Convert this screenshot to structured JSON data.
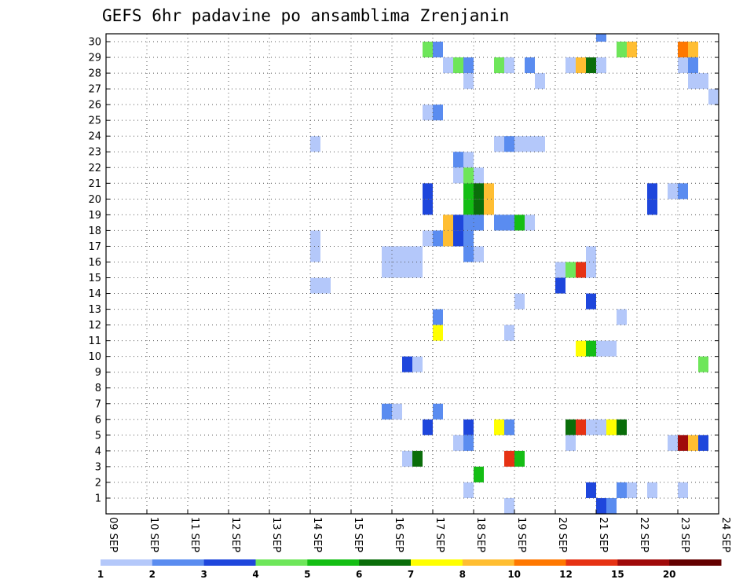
{
  "chart_data": {
    "type": "heatmap",
    "title": "GEFS 6hr padavine po ansamblima Zrenjanin",
    "xlabel": "",
    "ylabel": "",
    "x_tick_labels": [
      "09 SEP",
      "10 SEP",
      "11 SEP",
      "12 SEP",
      "13 SEP",
      "14 SEP",
      "15 SEP",
      "16 SEP",
      "17 SEP",
      "18 SEP",
      "19 SEP",
      "20 SEP",
      "21 SEP",
      "22 SEP",
      "23 SEP",
      "24 SEP"
    ],
    "y_tick_labels": [
      "1",
      "2",
      "3",
      "4",
      "5",
      "6",
      "7",
      "8",
      "9",
      "10",
      "11",
      "12",
      "13",
      "14",
      "15",
      "16",
      "17",
      "18",
      "19",
      "20",
      "21",
      "22",
      "23",
      "24",
      "25",
      "26",
      "27",
      "28",
      "29",
      "30"
    ],
    "xlim_days": [
      0,
      15
    ],
    "ylim_members": [
      0,
      30
    ],
    "steps_per_day": 4,
    "grid": true,
    "legend": {
      "placement": "bottom",
      "colors": [
        "#b4c8fa",
        "#5a8cf0",
        "#1e46dc",
        "#6ee65a",
        "#14be14",
        "#0a6e0a",
        "#ffff00",
        "#ffbe32",
        "#ff7800",
        "#e63214",
        "#a00a0a",
        "#640000"
      ],
      "labels": [
        "1",
        "2",
        "3",
        "4",
        "5",
        "6",
        "7",
        "8",
        "10",
        "12",
        "15",
        "20"
      ]
    },
    "cells": [
      {
        "member": 30,
        "day": 12.0,
        "level": 1
      },
      {
        "member": 29,
        "day": 7.75,
        "level": 3
      },
      {
        "member": 29,
        "day": 8.0,
        "level": 1
      },
      {
        "member": 29,
        "day": 12.5,
        "level": 3
      },
      {
        "member": 29,
        "day": 12.75,
        "level": 7
      },
      {
        "member": 29,
        "day": 14.0,
        "level": 8
      },
      {
        "member": 29,
        "day": 14.25,
        "level": 7
      },
      {
        "member": 28,
        "day": 8.25,
        "level": 0
      },
      {
        "member": 28,
        "day": 8.5,
        "level": 3
      },
      {
        "member": 28,
        "day": 8.75,
        "level": 1
      },
      {
        "member": 28,
        "day": 9.5,
        "level": 3
      },
      {
        "member": 28,
        "day": 9.75,
        "level": 0
      },
      {
        "member": 28,
        "day": 10.25,
        "level": 1
      },
      {
        "member": 28,
        "day": 11.25,
        "level": 0
      },
      {
        "member": 28,
        "day": 11.5,
        "level": 7
      },
      {
        "member": 28,
        "day": 11.75,
        "level": 5
      },
      {
        "member": 28,
        "day": 12.0,
        "level": 0
      },
      {
        "member": 28,
        "day": 14.0,
        "level": 0
      },
      {
        "member": 28,
        "day": 14.25,
        "level": 1
      },
      {
        "member": 27,
        "day": 8.75,
        "level": 0
      },
      {
        "member": 27,
        "day": 10.5,
        "level": 0
      },
      {
        "member": 27,
        "day": 14.25,
        "level": 0
      },
      {
        "member": 27,
        "day": 14.5,
        "level": 0
      },
      {
        "member": 26,
        "day": 14.75,
        "level": 0
      },
      {
        "member": 25,
        "day": 7.75,
        "level": 0
      },
      {
        "member": 25,
        "day": 8.0,
        "level": 1
      },
      {
        "member": 23,
        "day": 5.0,
        "level": 0
      },
      {
        "member": 23,
        "day": 9.5,
        "level": 0
      },
      {
        "member": 23,
        "day": 9.75,
        "level": 1
      },
      {
        "member": 23,
        "day": 10.0,
        "level": 0
      },
      {
        "member": 23,
        "day": 10.25,
        "level": 0
      },
      {
        "member": 23,
        "day": 10.5,
        "level": 0
      },
      {
        "member": 22,
        "day": 8.5,
        "level": 1
      },
      {
        "member": 22,
        "day": 8.75,
        "level": 0
      },
      {
        "member": 21,
        "day": 8.5,
        "level": 0
      },
      {
        "member": 21,
        "day": 8.75,
        "level": 3
      },
      {
        "member": 21,
        "day": 9.0,
        "level": 0
      },
      {
        "member": 20,
        "day": 7.75,
        "level": 2
      },
      {
        "member": 20,
        "day": 8.75,
        "level": 4
      },
      {
        "member": 20,
        "day": 9.0,
        "level": 5
      },
      {
        "member": 20,
        "day": 9.25,
        "level": 7
      },
      {
        "member": 20,
        "day": 13.25,
        "level": 2
      },
      {
        "member": 20,
        "day": 13.75,
        "level": 0
      },
      {
        "member": 20,
        "day": 14.0,
        "level": 1
      },
      {
        "member": 19,
        "day": 7.75,
        "level": 2
      },
      {
        "member": 19,
        "day": 8.75,
        "level": 4
      },
      {
        "member": 19,
        "day": 9.0,
        "level": 5
      },
      {
        "member": 19,
        "day": 9.25,
        "level": 7
      },
      {
        "member": 19,
        "day": 13.25,
        "level": 2
      },
      {
        "member": 18,
        "day": 8.25,
        "level": 7
      },
      {
        "member": 18,
        "day": 8.5,
        "level": 2
      },
      {
        "member": 18,
        "day": 8.75,
        "level": 1
      },
      {
        "member": 18,
        "day": 9.0,
        "level": 1
      },
      {
        "member": 18,
        "day": 9.5,
        "level": 1
      },
      {
        "member": 18,
        "day": 9.75,
        "level": 1
      },
      {
        "member": 18,
        "day": 10.0,
        "level": 4
      },
      {
        "member": 18,
        "day": 10.25,
        "level": 0
      },
      {
        "member": 17,
        "day": 5.0,
        "level": 0
      },
      {
        "member": 17,
        "day": 7.75,
        "level": 0
      },
      {
        "member": 17,
        "day": 8.0,
        "level": 1
      },
      {
        "member": 17,
        "day": 8.25,
        "level": 7
      },
      {
        "member": 17,
        "day": 8.5,
        "level": 2
      },
      {
        "member": 17,
        "day": 8.75,
        "level": 1
      },
      {
        "member": 16,
        "day": 5.0,
        "level": 0
      },
      {
        "member": 16,
        "day": 6.75,
        "level": 0
      },
      {
        "member": 16,
        "day": 7.0,
        "level": 0
      },
      {
        "member": 16,
        "day": 7.25,
        "level": 0
      },
      {
        "member": 16,
        "day": 7.5,
        "level": 0
      },
      {
        "member": 16,
        "day": 8.75,
        "level": 1
      },
      {
        "member": 16,
        "day": 9.0,
        "level": 0
      },
      {
        "member": 16,
        "day": 11.75,
        "level": 0
      },
      {
        "member": 15,
        "day": 6.75,
        "level": 0
      },
      {
        "member": 15,
        "day": 7.0,
        "level": 0
      },
      {
        "member": 15,
        "day": 7.25,
        "level": 0
      },
      {
        "member": 15,
        "day": 7.5,
        "level": 0
      },
      {
        "member": 15,
        "day": 11.0,
        "level": 0
      },
      {
        "member": 15,
        "day": 11.25,
        "level": 3
      },
      {
        "member": 15,
        "day": 11.5,
        "level": 9
      },
      {
        "member": 15,
        "day": 11.75,
        "level": 0
      },
      {
        "member": 14,
        "day": 5.0,
        "level": 0
      },
      {
        "member": 14,
        "day": 5.25,
        "level": 0
      },
      {
        "member": 14,
        "day": 11.0,
        "level": 2
      },
      {
        "member": 13,
        "day": 10.0,
        "level": 0
      },
      {
        "member": 13,
        "day": 11.75,
        "level": 2
      },
      {
        "member": 12,
        "day": 8.0,
        "level": 1
      },
      {
        "member": 12,
        "day": 12.5,
        "level": 0
      },
      {
        "member": 11,
        "day": 8.0,
        "level": 6
      },
      {
        "member": 11,
        "day": 9.75,
        "level": 0
      },
      {
        "member": 10,
        "day": 11.5,
        "level": 6
      },
      {
        "member": 10,
        "day": 11.75,
        "level": 4
      },
      {
        "member": 10,
        "day": 12.0,
        "level": 0
      },
      {
        "member": 10,
        "day": 12.25,
        "level": 0
      },
      {
        "member": 9,
        "day": 7.25,
        "level": 2
      },
      {
        "member": 9,
        "day": 7.5,
        "level": 0
      },
      {
        "member": 9,
        "day": 14.5,
        "level": 3
      },
      {
        "member": 6,
        "day": 6.75,
        "level": 1
      },
      {
        "member": 6,
        "day": 7.0,
        "level": 0
      },
      {
        "member": 6,
        "day": 8.0,
        "level": 1
      },
      {
        "member": 5,
        "day": 7.75,
        "level": 2
      },
      {
        "member": 5,
        "day": 8.75,
        "level": 2
      },
      {
        "member": 5,
        "day": 9.5,
        "level": 6
      },
      {
        "member": 5,
        "day": 9.75,
        "level": 1
      },
      {
        "member": 5,
        "day": 11.25,
        "level": 5
      },
      {
        "member": 5,
        "day": 11.5,
        "level": 9
      },
      {
        "member": 5,
        "day": 11.75,
        "level": 0
      },
      {
        "member": 5,
        "day": 12.0,
        "level": 0
      },
      {
        "member": 5,
        "day": 12.25,
        "level": 6
      },
      {
        "member": 5,
        "day": 12.5,
        "level": 5
      },
      {
        "member": 4,
        "day": 8.5,
        "level": 0
      },
      {
        "member": 4,
        "day": 8.75,
        "level": 1
      },
      {
        "member": 4,
        "day": 11.25,
        "level": 0
      },
      {
        "member": 4,
        "day": 13.75,
        "level": 0
      },
      {
        "member": 4,
        "day": 14.0,
        "level": 10
      },
      {
        "member": 4,
        "day": 14.25,
        "level": 7
      },
      {
        "member": 4,
        "day": 14.5,
        "level": 2
      },
      {
        "member": 3,
        "day": 7.25,
        "level": 0
      },
      {
        "member": 3,
        "day": 7.5,
        "level": 5
      },
      {
        "member": 3,
        "day": 9.75,
        "level": 9
      },
      {
        "member": 3,
        "day": 10.0,
        "level": 4
      },
      {
        "member": 2,
        "day": 9.0,
        "level": 4
      },
      {
        "member": 1,
        "day": 8.75,
        "level": 0
      },
      {
        "member": 1,
        "day": 11.75,
        "level": 2
      },
      {
        "member": 1,
        "day": 12.5,
        "level": 1
      },
      {
        "member": 1,
        "day": 12.75,
        "level": 0
      },
      {
        "member": 1,
        "day": 13.25,
        "level": 0
      },
      {
        "member": 1,
        "day": 14.0,
        "level": 0
      },
      {
        "member": 0,
        "day": 9.75,
        "level": 0
      },
      {
        "member": 0,
        "day": 12.0,
        "level": 2
      },
      {
        "member": 0,
        "day": 12.25,
        "level": 1
      }
    ]
  }
}
